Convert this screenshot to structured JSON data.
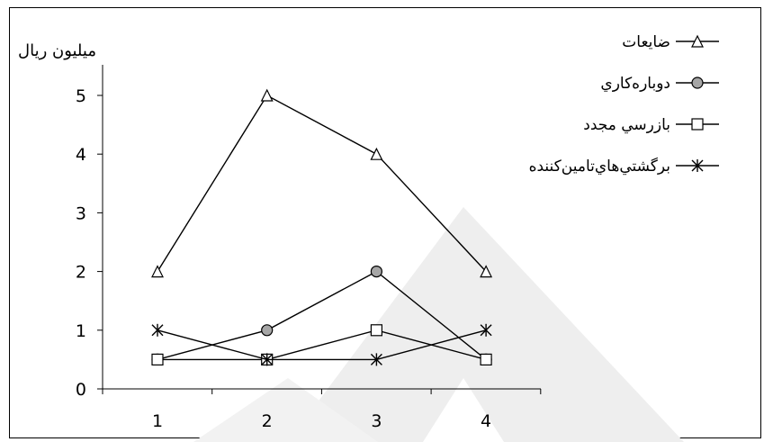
{
  "chart_data": {
    "type": "line",
    "title": "",
    "xlabel": "",
    "ylabel": "ميليون ريال",
    "x": [
      1,
      2,
      3,
      4
    ],
    "xticks": [
      "1",
      "2",
      "3",
      "4"
    ],
    "yticks": [
      "0",
      "1",
      "2",
      "3",
      "4",
      "5"
    ],
    "ylim": [
      0,
      5.5
    ],
    "grid": false,
    "legend_position": "top-right",
    "series": [
      {
        "name": "ضايعات",
        "marker": "triangle",
        "values": [
          2,
          5,
          4,
          2
        ]
      },
      {
        "name": "دوباره‌كاري",
        "marker": "circle",
        "values": [
          0.5,
          1,
          2,
          0.5
        ]
      },
      {
        "name": "بازرسي مجدد",
        "marker": "square",
        "values": [
          0.5,
          0.5,
          1,
          0.5
        ]
      },
      {
        "name": "برگشتي‌هاي‌تامين‌كننده",
        "marker": "asterisk",
        "values": [
          1,
          0.5,
          0.5,
          1
        ]
      }
    ],
    "colors": {
      "line": "#000000",
      "circle_fill": "#a6a6a6",
      "watermark": "#eeeeee"
    }
  }
}
